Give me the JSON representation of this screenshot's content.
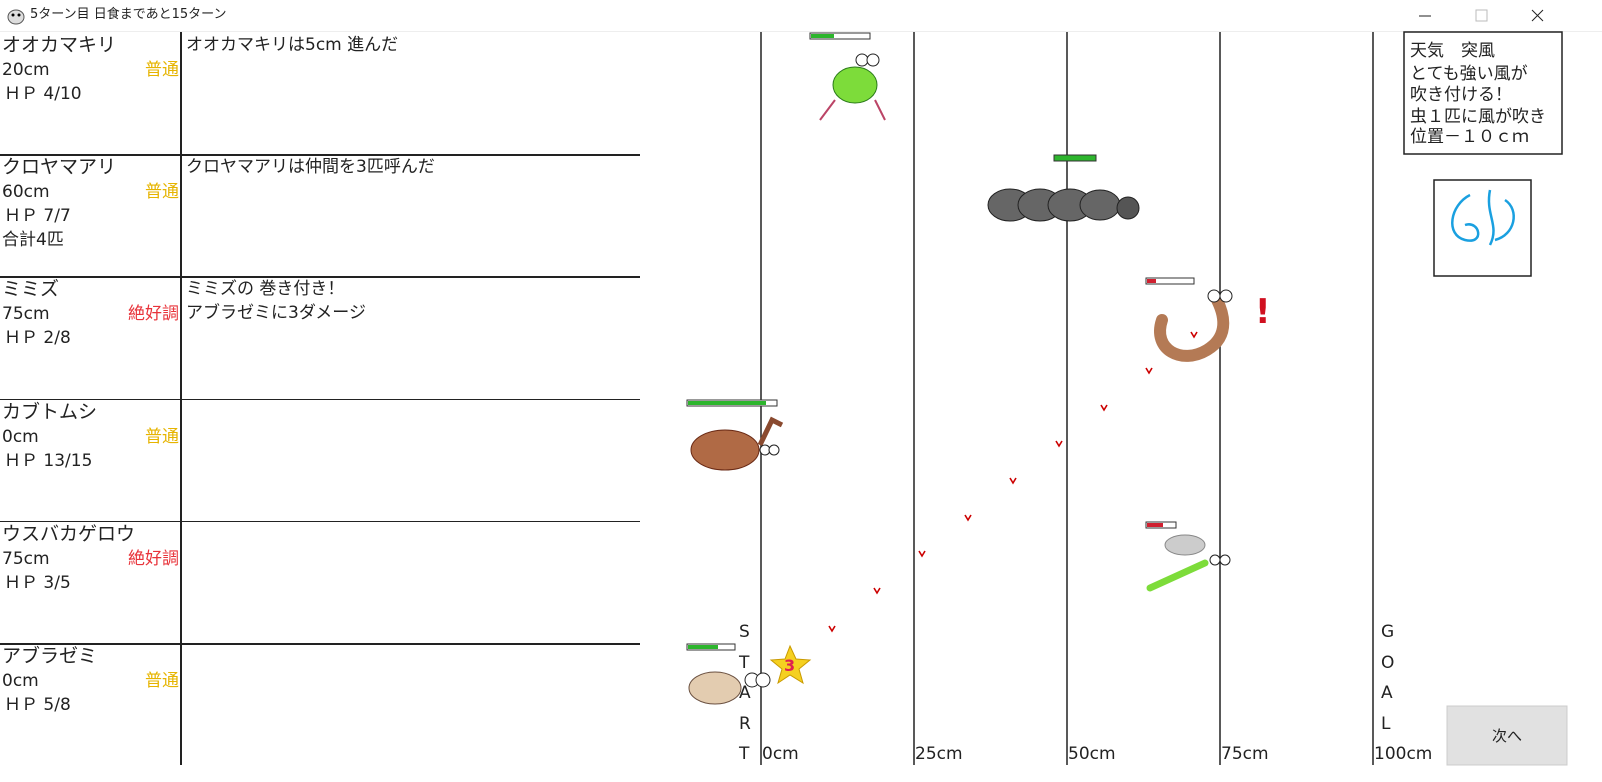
{
  "window": {
    "title": "5ターン目 日食まであと15ターン"
  },
  "rows": [
    {
      "name": "オオカマキリ",
      "distance": "20cm",
      "condition": "普通",
      "condition_color": "#e6b400",
      "hp": "ＨＰ 4/10",
      "log": [
        "オオカマキリは5cm 進んだ"
      ]
    },
    {
      "name": "クロヤマアリ",
      "distance": "60cm",
      "condition": "普通",
      "condition_color": "#e6b400",
      "hp": "ＨＰ 7/7",
      "extra": "合計4匹",
      "log": [
        "クロヤマアリは仲間を3匹呼んだ"
      ]
    },
    {
      "name": "ミミズ",
      "distance": "75cm",
      "condition": "絶好調",
      "condition_color": "#e8333a",
      "hp": "ＨＰ 2/8",
      "log": [
        "ミミズの 巻き付き！",
        "アブラゼミに3ダメージ"
      ]
    },
    {
      "name": "カブトムシ",
      "distance": "0cm",
      "condition": "普通",
      "condition_color": "#e6b400",
      "hp": "ＨＰ 13/15",
      "log": []
    },
    {
      "name": "ウスバカゲロウ",
      "distance": "75cm",
      "condition": "絶好調",
      "condition_color": "#e8333a",
      "hp": "ＨＰ 3/5",
      "log": []
    },
    {
      "name": "アブラゼミ",
      "distance": "0cm",
      "condition": "普通",
      "condition_color": "#e6b400",
      "hp": "ＨＰ 5/8",
      "log": []
    }
  ],
  "track": {
    "axis_labels": [
      "0cm",
      "25cm",
      "50cm",
      "75cm",
      "100cm"
    ],
    "start_letters": [
      "S",
      "T",
      "A",
      "R",
      "T"
    ],
    "goal_letters": [
      "G",
      "O",
      "A",
      "L"
    ],
    "alert": "!",
    "star_label": "3"
  },
  "weather": {
    "heading": "天気　突風",
    "lines": [
      "とても強い風が",
      "吹き付ける！"
    ],
    "effect": [
      "虫１匹に風が吹き",
      "位置－１０ｃｍ"
    ]
  },
  "next_button": "次へ"
}
